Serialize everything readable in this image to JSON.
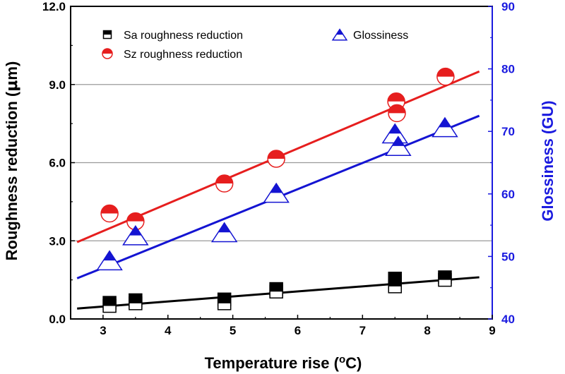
{
  "chart_data": {
    "type": "scatter",
    "xlabel": "Temperature rise (",
    "xlabel_sup": "o",
    "xlabel_unit": "C)",
    "ylabel": "Roughness reduction (",
    "ylabel_mu": "μ",
    "ylabel_unit": "m)",
    "y2label": "Glossiness (GU)",
    "xlim": [
      2.5,
      9
    ],
    "ylim": [
      0,
      12
    ],
    "y2lim": [
      40,
      90
    ],
    "x_ticks": [
      "3",
      "4",
      "5",
      "6",
      "7",
      "8",
      "9"
    ],
    "y_ticks": [
      "0.0",
      "3.0",
      "6.0",
      "9.0",
      "12.0"
    ],
    "y2_ticks": [
      "40",
      "50",
      "60",
      "70",
      "80",
      "90"
    ],
    "gridlines_y": [
      3,
      6,
      9
    ],
    "legend": {
      "sa": "Sa roughness reduction",
      "sz": "Sz roughness reduction",
      "gloss": "Glossiness"
    },
    "colors": {
      "sa": "#000000",
      "sz": "#e61e1e",
      "gloss": "#1414d2",
      "right_axis": "#1a1adf"
    },
    "series": [
      {
        "name": "Sa roughness reduction",
        "axis": "left",
        "marker": "square-half",
        "points": [
          {
            "x": 3.1,
            "y": 0.62
          },
          {
            "x": 3.1,
            "y": 0.5
          },
          {
            "x": 3.5,
            "y": 0.72
          },
          {
            "x": 3.5,
            "y": 0.6
          },
          {
            "x": 4.87,
            "y": 0.75
          },
          {
            "x": 4.87,
            "y": 0.6
          },
          {
            "x": 5.67,
            "y": 1.15
          },
          {
            "x": 5.67,
            "y": 1.05
          },
          {
            "x": 7.5,
            "y": 1.55
          },
          {
            "x": 7.5,
            "y": 1.4
          },
          {
            "x": 7.5,
            "y": 1.25
          },
          {
            "x": 8.27,
            "y": 1.6
          },
          {
            "x": 8.27,
            "y": 1.5
          }
        ],
        "fit": {
          "x": [
            2.6,
            8.8
          ],
          "y": [
            0.4,
            1.6
          ]
        }
      },
      {
        "name": "Sz roughness reduction",
        "axis": "left",
        "marker": "circle-half",
        "points": [
          {
            "x": 3.1,
            "y": 4.05
          },
          {
            "x": 3.5,
            "y": 3.75
          },
          {
            "x": 4.87,
            "y": 5.2
          },
          {
            "x": 5.67,
            "y": 6.15
          },
          {
            "x": 7.52,
            "y": 8.35
          },
          {
            "x": 7.53,
            "y": 7.9
          },
          {
            "x": 8.28,
            "y": 9.3
          }
        ],
        "fit": {
          "x": [
            2.6,
            8.8
          ],
          "y": [
            2.95,
            9.5
          ]
        }
      },
      {
        "name": "Glossiness",
        "axis": "right",
        "marker": "triangle-half",
        "points": [
          {
            "x": 3.1,
            "y": 49.0
          },
          {
            "x": 3.5,
            "y": 53.0
          },
          {
            "x": 4.87,
            "y": 53.5
          },
          {
            "x": 5.67,
            "y": 59.8
          },
          {
            "x": 7.5,
            "y": 69.3
          },
          {
            "x": 7.55,
            "y": 67.3
          },
          {
            "x": 8.27,
            "y": 70.3
          }
        ],
        "fit": {
          "x": [
            2.6,
            8.8
          ],
          "y": [
            46.5,
            72.5
          ]
        }
      }
    ]
  }
}
